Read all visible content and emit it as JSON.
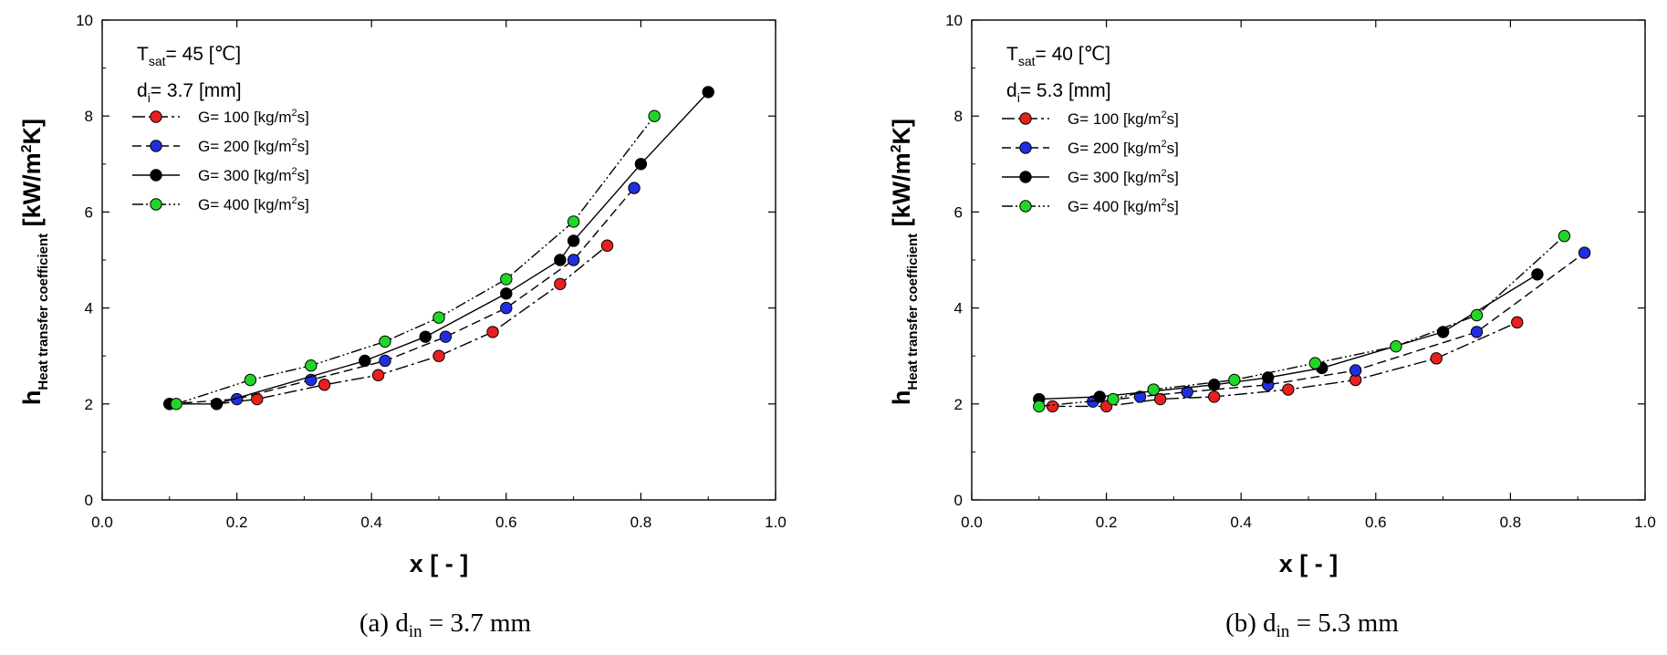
{
  "chart_data": [
    {
      "type": "line",
      "caption": {
        "prefix": "(a) d",
        "sub": "in",
        "suffix": " = 3.7 mm"
      },
      "xlabel": "x [ - ]",
      "ylabel": {
        "main": "h",
        "sub": "Heat transfer coefficient",
        "unit_a": " [kW/m",
        "unit_sup": "2",
        "unit_b": "K]"
      },
      "xlim": [
        0.0,
        1.0
      ],
      "ylim": [
        0,
        10
      ],
      "xticks": [
        "0.0",
        "0.2",
        "0.4",
        "0.6",
        "0.8",
        "1.0"
      ],
      "yticks": [
        "0",
        "2",
        "4",
        "6",
        "8",
        "10"
      ],
      "annotations": [
        {
          "main": "T",
          "sub": "sat",
          "rest": "= 45 [℃]"
        },
        {
          "main": "d",
          "sub": "i",
          "rest": "= 3.7 [mm]"
        }
      ],
      "legend_position": "top-left",
      "series": [
        {
          "name": "G= 100 [kg/m²s]",
          "label_a": "G= 100 [kg/m",
          "label_sup": "2",
          "label_b": "s]",
          "color": "#e8201f",
          "dash": "14 4 3 4",
          "x": [
            0.17,
            0.23,
            0.33,
            0.41,
            0.5,
            0.58,
            0.68,
            0.75
          ],
          "y": [
            2.0,
            2.1,
            2.4,
            2.6,
            3.0,
            3.5,
            4.5,
            5.3
          ]
        },
        {
          "name": "G= 200 [kg/m²s]",
          "label_a": "G= 200 [kg/m",
          "label_sup": "2",
          "label_b": "s]",
          "color": "#1f2fe0",
          "dash": "10 5",
          "x": [
            0.1,
            0.2,
            0.31,
            0.42,
            0.51,
            0.6,
            0.7,
            0.79
          ],
          "y": [
            2.0,
            2.1,
            2.5,
            2.9,
            3.4,
            4.0,
            5.0,
            6.5
          ]
        },
        {
          "name": "G= 300 [kg/m²s]",
          "label_a": "G= 300 [kg/m",
          "label_sup": "2",
          "label_b": "s]",
          "color": "#000000",
          "dash": "",
          "x": [
            0.1,
            0.17,
            0.39,
            0.48,
            0.6,
            0.68,
            0.7,
            0.8,
            0.9
          ],
          "y": [
            2.0,
            2.0,
            2.9,
            3.4,
            4.3,
            5.0,
            5.4,
            7.0,
            8.5
          ]
        },
        {
          "name": "G= 400 [kg/m²s]",
          "label_a": "G= 400 [kg/m",
          "label_sup": "2",
          "label_b": "s]",
          "color": "#22d628",
          "dash": "12 3 2 3 2 3",
          "x": [
            0.11,
            0.22,
            0.31,
            0.42,
            0.5,
            0.6,
            0.7,
            0.82
          ],
          "y": [
            2.0,
            2.5,
            2.8,
            3.3,
            3.8,
            4.6,
            5.8,
            8.0
          ]
        }
      ]
    },
    {
      "type": "line",
      "caption": {
        "prefix": "(b) d",
        "sub": "in",
        "suffix": " = 5.3 mm"
      },
      "xlabel": "x [ - ]",
      "ylabel": {
        "main": "h",
        "sub": "Heat transfer coefficient",
        "unit_a": " [kW/m",
        "unit_sup": "2",
        "unit_b": "K]"
      },
      "xlim": [
        0.0,
        1.0
      ],
      "ylim": [
        0,
        10
      ],
      "xticks": [
        "0.0",
        "0.2",
        "0.4",
        "0.6",
        "0.8",
        "1.0"
      ],
      "yticks": [
        "0",
        "2",
        "4",
        "6",
        "8",
        "10"
      ],
      "annotations": [
        {
          "main": "T",
          "sub": "sat",
          "rest": "= 40 [℃]"
        },
        {
          "main": "d",
          "sub": "i",
          "rest": "= 5.3 [mm]"
        }
      ],
      "legend_position": "top-left",
      "series": [
        {
          "name": "G= 100 [kg/m²s]",
          "label_a": "G= 100 [kg/m",
          "label_sup": "2",
          "label_b": "s]",
          "color": "#e8201f",
          "dash": "14 4 3 4",
          "x": [
            0.12,
            0.2,
            0.28,
            0.36,
            0.47,
            0.57,
            0.69,
            0.81
          ],
          "y": [
            1.95,
            1.95,
            2.1,
            2.15,
            2.3,
            2.5,
            2.95,
            3.7
          ]
        },
        {
          "name": "G= 200 [kg/m²s]",
          "label_a": "G= 200 [kg/m",
          "label_sup": "2",
          "label_b": "s]",
          "color": "#1f2fe0",
          "dash": "10 5",
          "x": [
            0.18,
            0.25,
            0.32,
            0.44,
            0.57,
            0.75,
            0.91
          ],
          "y": [
            2.05,
            2.15,
            2.25,
            2.4,
            2.7,
            3.5,
            5.15
          ]
        },
        {
          "name": "G= 300 [kg/m²s]",
          "label_a": "G= 300 [kg/m",
          "label_sup": "2",
          "label_b": "s]",
          "color": "#000000",
          "dash": "",
          "x": [
            0.1,
            0.19,
            0.36,
            0.44,
            0.52,
            0.7,
            0.84
          ],
          "y": [
            2.1,
            2.15,
            2.4,
            2.55,
            2.75,
            3.5,
            4.7
          ]
        },
        {
          "name": "G= 400 [kg/m²s]",
          "label_a": "G= 400 [kg/m",
          "label_sup": "2",
          "label_b": "s]",
          "color": "#22d628",
          "dash": "12 3 2 3 2 3",
          "x": [
            0.1,
            0.21,
            0.27,
            0.39,
            0.51,
            0.63,
            0.75,
            0.88
          ],
          "y": [
            1.95,
            2.1,
            2.3,
            2.5,
            2.85,
            3.2,
            3.85,
            5.5
          ]
        }
      ]
    }
  ]
}
